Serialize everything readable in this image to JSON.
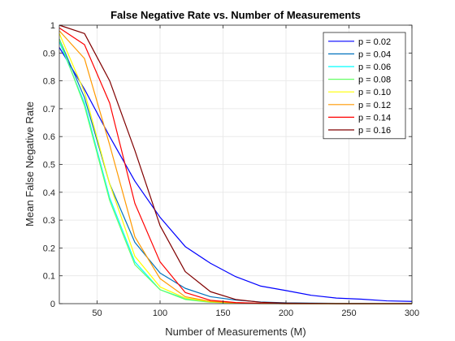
{
  "chart_data": {
    "type": "line",
    "title": "False Negative Rate vs. Number of Measurements",
    "xlabel": "Number of Measurements (M)",
    "ylabel": "Mean False Negative Rate",
    "xlim": [
      20,
      300
    ],
    "ylim": [
      0,
      1
    ],
    "xticks": [
      50,
      100,
      150,
      200,
      250,
      300
    ],
    "xtick_labels": [
      "50",
      "100",
      "150",
      "200",
      "250",
      "300"
    ],
    "yticks": [
      0,
      0.1,
      0.2,
      0.3,
      0.4,
      0.5,
      0.6,
      0.7,
      0.8,
      0.9,
      1
    ],
    "ytick_labels": [
      "0",
      "0.1",
      "0.2",
      "0.3",
      "0.4",
      "0.5",
      "0.6",
      "0.7",
      "0.8",
      "0.9",
      "1"
    ],
    "grid": true,
    "legend_position": "top-right",
    "x": [
      20,
      40,
      60,
      80,
      100,
      120,
      140,
      160,
      180,
      200,
      220,
      240,
      260,
      280,
      300
    ],
    "series": [
      {
        "name": "p = 0.02",
        "color": "#0000ff",
        "values": [
          0.92,
          0.77,
          0.6,
          0.44,
          0.31,
          0.205,
          0.145,
          0.097,
          0.063,
          0.047,
          0.03,
          0.02,
          0.016,
          0.01,
          0.008
        ]
      },
      {
        "name": "p = 0.04",
        "color": "#0072bd",
        "values": [
          0.95,
          0.74,
          0.43,
          0.22,
          0.11,
          0.055,
          0.025,
          0.013,
          0.006,
          0.003,
          0.002,
          0.001,
          0.001,
          0.0,
          0.0
        ]
      },
      {
        "name": "p = 0.06",
        "color": "#00ffff",
        "values": [
          0.94,
          0.72,
          0.38,
          0.15,
          0.05,
          0.018,
          0.006,
          0.002,
          0.001,
          0.0,
          0.0,
          0.0,
          0.0,
          0.0,
          0.0
        ]
      },
      {
        "name": "p = 0.08",
        "color": "#66ff66",
        "values": [
          0.95,
          0.71,
          0.37,
          0.14,
          0.05,
          0.015,
          0.005,
          0.002,
          0.0,
          0.0,
          0.0,
          0.0,
          0.0,
          0.0,
          0.0
        ]
      },
      {
        "name": "p = 0.10",
        "color": "#ffff00",
        "values": [
          0.97,
          0.76,
          0.43,
          0.17,
          0.06,
          0.02,
          0.007,
          0.002,
          0.001,
          0.0,
          0.0,
          0.0,
          0.0,
          0.0,
          0.0
        ]
      },
      {
        "name": "p = 0.12",
        "color": "#ff9900",
        "values": [
          0.98,
          0.88,
          0.57,
          0.24,
          0.09,
          0.025,
          0.008,
          0.003,
          0.001,
          0.0,
          0.0,
          0.0,
          0.0,
          0.0,
          0.0
        ]
      },
      {
        "name": "p = 0.14",
        "color": "#ff0000",
        "values": [
          0.99,
          0.93,
          0.72,
          0.36,
          0.15,
          0.04,
          0.012,
          0.004,
          0.001,
          0.0,
          0.0,
          0.0,
          0.0,
          0.0,
          0.0
        ]
      },
      {
        "name": "p = 0.16",
        "color": "#800000",
        "values": [
          1.0,
          0.97,
          0.8,
          0.55,
          0.28,
          0.115,
          0.043,
          0.015,
          0.005,
          0.002,
          0.001,
          0.0,
          0.0,
          0.0,
          0.0
        ]
      }
    ]
  }
}
